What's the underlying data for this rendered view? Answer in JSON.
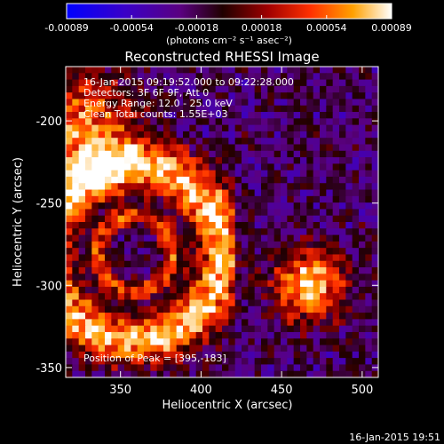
{
  "chart_data": {
    "type": "heatmap",
    "title": "Reconstructed RHESSI Image",
    "xlabel": "Heliocentric X (arcsec)",
    "ylabel": "Heliocentric Y (arcsec)",
    "xlim": [
      316,
      510
    ],
    "ylim": [
      -356,
      -167
    ],
    "x_ticks": [
      350,
      400,
      450,
      500
    ],
    "y_ticks": [
      -200,
      -250,
      -300,
      -350
    ],
    "colorbar": {
      "min": -0.00089,
      "max": 0.00089,
      "ticks": [
        "-0.00089",
        "-0.00054",
        "-0.00018",
        "0.00018",
        "0.00054",
        "0.00089"
      ],
      "unit_label": "(photons cm⁻² s⁻¹ asec⁻²)"
    },
    "annotations": [
      "16-Jan-2015 09:19:52.000 to 09:22:28.000",
      "Detectors: 3F 6F 9F, Att 0",
      "Energy Range: 12.0 - 25.0 keV",
      "Clean     Total counts: 1.55E+03"
    ],
    "peak_label": "Position of Peak = [395,-183]",
    "timestamp": "16-Jan-2015 19:51"
  }
}
